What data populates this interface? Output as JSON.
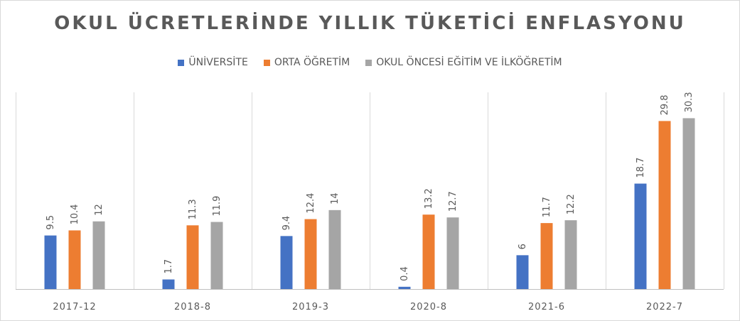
{
  "chart_data": {
    "type": "bar",
    "title": "OKUL ÜCRETLERİNDE YILLIK TÜKETİCİ ENFLASYONU",
    "categories": [
      "2017-12",
      "2018-8",
      "2019-3",
      "2020-8",
      "2021-6",
      "2022-7"
    ],
    "series": [
      {
        "name": "ÜNİVERSİTE",
        "color": "#4472c4",
        "values": [
          9.5,
          1.7,
          9.4,
          0.4,
          6,
          18.7
        ]
      },
      {
        "name": "ORTA ÖĞRETİM",
        "color": "#ed7d31",
        "values": [
          10.4,
          11.3,
          12.4,
          13.2,
          11.7,
          29.8
        ]
      },
      {
        "name": "OKUL ÖNCESİ EĞİTİM VE İLKÖĞRETİM",
        "color": "#a5a5a5",
        "values": [
          12,
          11.9,
          14,
          12.7,
          12.2,
          30.3
        ]
      }
    ],
    "ylim": [
      0,
      33
    ],
    "legend_position": "top",
    "grid": "vertical category separators"
  }
}
